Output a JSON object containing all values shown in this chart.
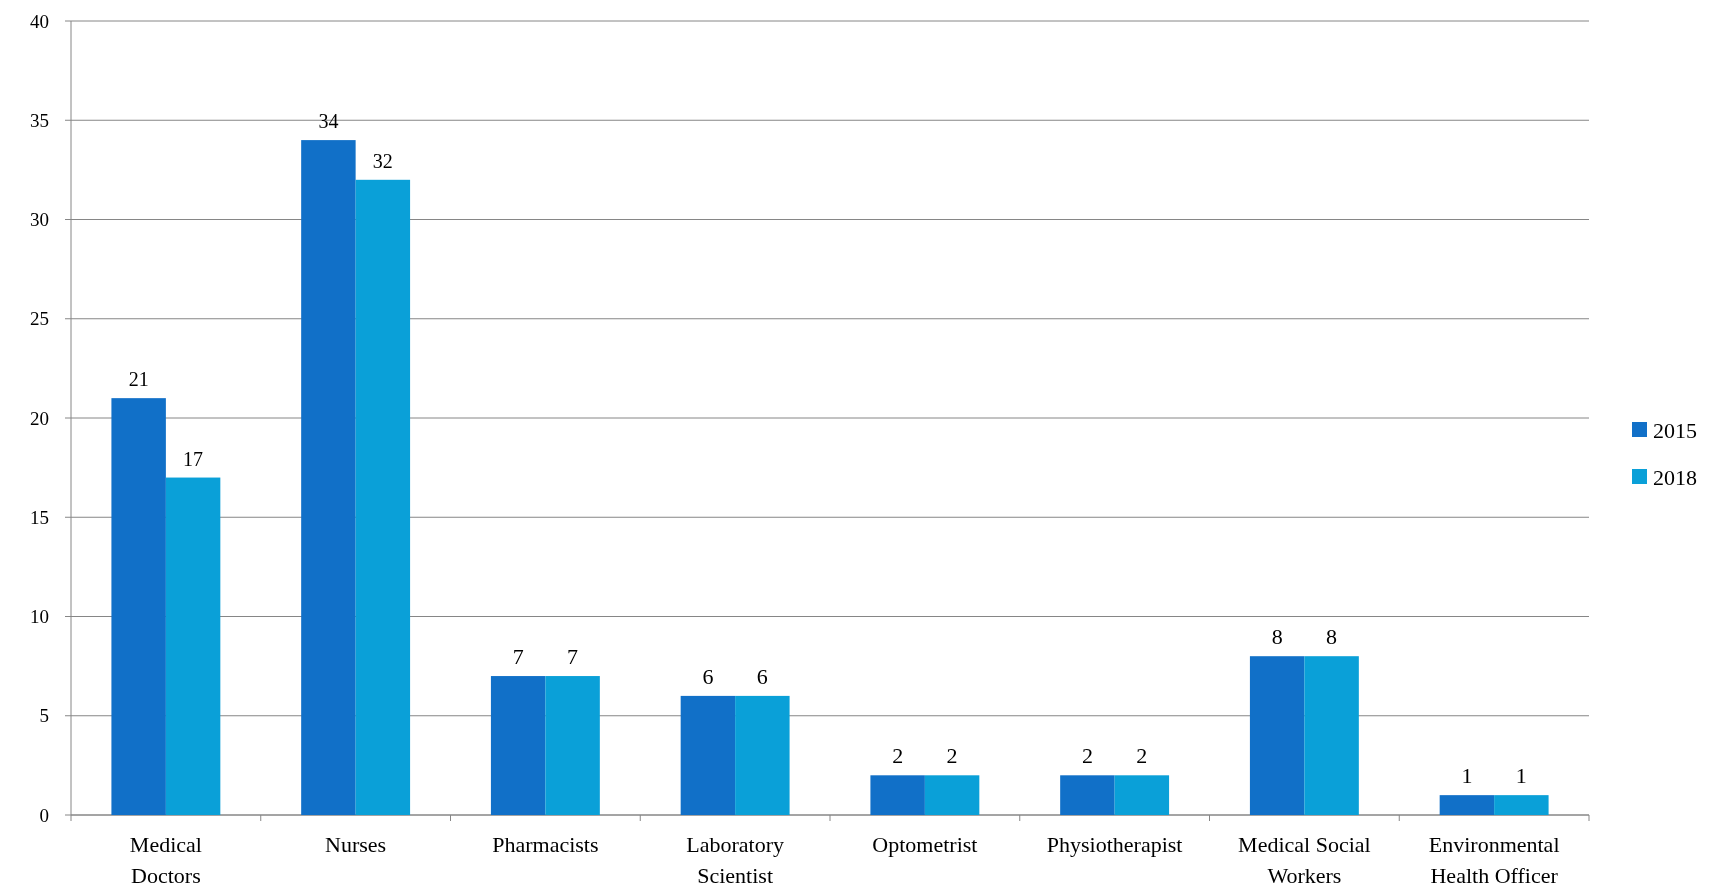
{
  "chart_data": {
    "type": "bar",
    "categories": [
      "Medical Doctors",
      "Nurses",
      "Pharmacists",
      "Laboratory Scientist",
      "Optometrist",
      "Physiotherapist",
      "Medical Social Workers",
      "Environmental Health Officer"
    ],
    "series": [
      {
        "name": "2015",
        "color": "#1170c8",
        "values": [
          21,
          34,
          7,
          6,
          2,
          2,
          8,
          1
        ]
      },
      {
        "name": "2018",
        "color": "#0aa0d8",
        "values": [
          17,
          32,
          7,
          6,
          2,
          2,
          8,
          1
        ]
      }
    ],
    "ylim": [
      0,
      40
    ],
    "yticks": [
      0,
      5,
      10,
      15,
      20,
      25,
      30,
      35,
      40
    ],
    "grid": "y",
    "legend": "right",
    "data_labels": true
  }
}
